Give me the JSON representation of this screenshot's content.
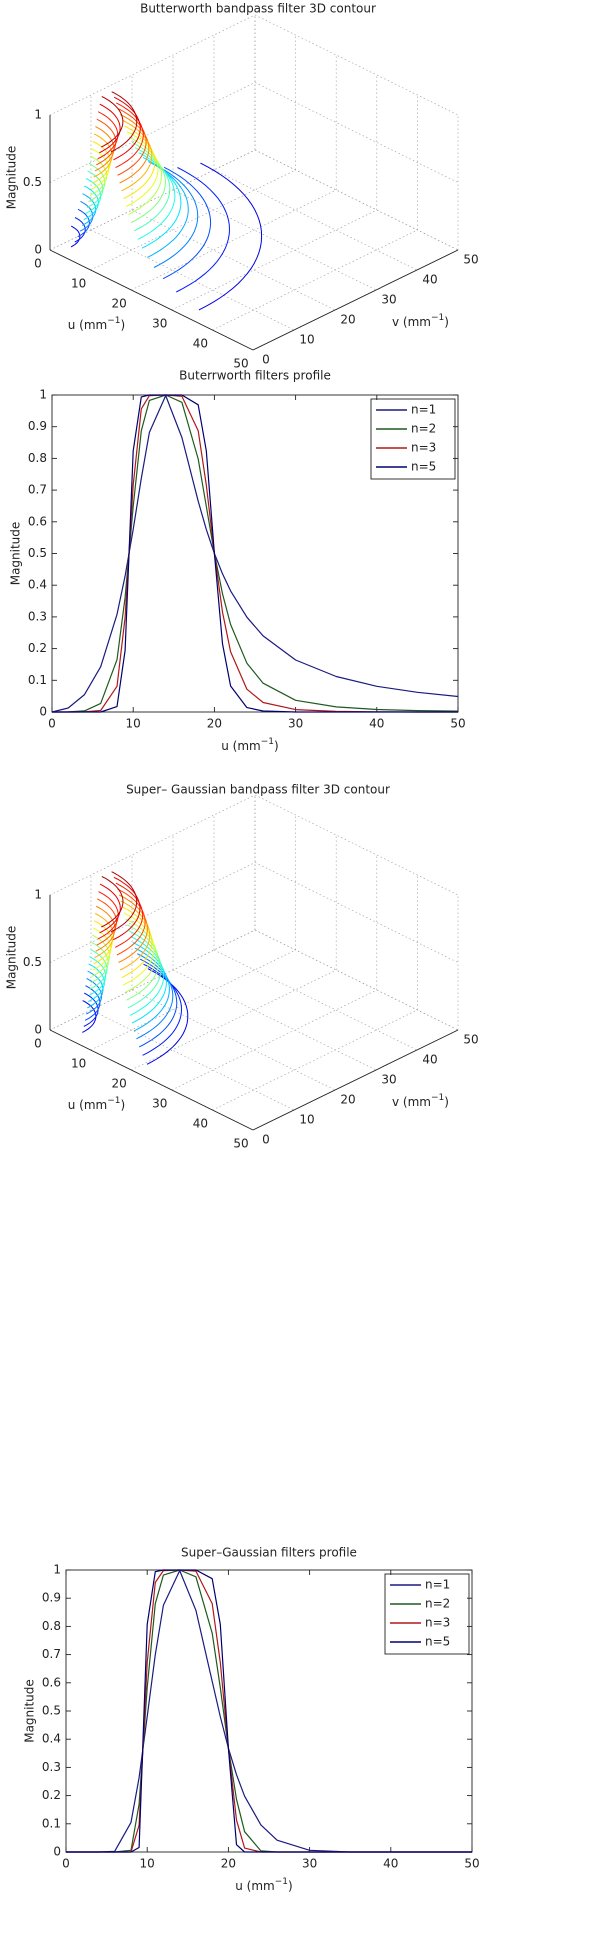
{
  "chart_data": [
    {
      "type": "contour3d",
      "title": "Butterworth  bandpass filter 3D contour",
      "xlabel": [
        "u (mm",
        "−1",
        ")"
      ],
      "ylabel": [
        "v (mm",
        "−1",
        ")"
      ],
      "zlabel": "Magnitude",
      "xlim": [
        0,
        50
      ],
      "ylim": [
        0,
        50
      ],
      "zlim": [
        0,
        1
      ],
      "xticks": [
        0,
        10,
        20,
        30,
        40,
        50
      ],
      "yticks": [
        0,
        10,
        20,
        30,
        40,
        50
      ],
      "zticks": [
        0,
        0.5,
        1
      ]
    },
    {
      "type": "line",
      "title": "Buterrworth filters profile",
      "xlabel": [
        "u  (mm",
        "−1",
        ")"
      ],
      "ylabel": "Magnitude",
      "x": [
        0,
        2,
        4,
        6,
        8,
        9,
        10,
        11,
        12,
        14,
        16,
        18,
        19,
        20,
        21,
        22,
        24,
        26,
        30,
        35,
        40,
        45,
        50
      ],
      "series": [
        {
          "name": "n=1",
          "color": "#1a1a80",
          "values": [
            0,
            0.0126,
            0.055,
            0.143,
            0.308,
            0.429,
            0.576,
            0.737,
            0.882,
            0.998,
            0.866,
            0.665,
            0.576,
            0.5,
            0.436,
            0.382,
            0.299,
            0.24,
            0.164,
            0.112,
            0.081,
            0.062,
            0.049
          ]
        },
        {
          "name": "n=2",
          "color": "#1e5a1e",
          "values": [
            0,
            0.0002,
            0.0034,
            0.027,
            0.165,
            0.361,
            0.649,
            0.887,
            0.983,
            1,
            0.977,
            0.798,
            0.649,
            0.5,
            0.373,
            0.276,
            0.154,
            0.091,
            0.037,
            0.016,
            0.008,
            0.0044,
            0.0027
          ]
        },
        {
          "name": "n=3",
          "color": "#b01818",
          "values": [
            0,
            0,
            0.0002,
            0.0047,
            0.081,
            0.298,
            0.716,
            0.956,
            0.998,
            1,
            0.996,
            0.887,
            0.716,
            0.5,
            0.315,
            0.19,
            0.072,
            0.03,
            0.0076,
            0.002,
            0.0007,
            0,
            0
          ]
        },
        {
          "name": "n=5",
          "color": "#000070",
          "values": [
            0,
            0,
            0,
            0.0001,
            0.017,
            0.194,
            0.824,
            0.994,
            1,
            1,
            1,
            0.969,
            0.824,
            0.5,
            0.215,
            0.082,
            0.014,
            0.003,
            0,
            0,
            0,
            0,
            0
          ]
        }
      ],
      "xlim": [
        0,
        50
      ],
      "ylim": [
        0,
        1
      ],
      "xticks": [
        0,
        10,
        20,
        30,
        40,
        50
      ],
      "yticks": [
        0,
        0.1,
        0.2,
        0.3,
        0.4,
        0.5,
        0.6,
        0.7,
        0.8,
        0.9,
        1
      ],
      "legend": "upper right"
    },
    {
      "type": "contour3d",
      "title": "Super– Gaussian bandpass filter 3D contour",
      "xlabel": [
        "u (mm",
        "−1",
        ")"
      ],
      "ylabel": [
        "v (mm",
        "−1",
        ")"
      ],
      "zlabel": "Magnitude",
      "xlim": [
        0,
        50
      ],
      "ylim": [
        0,
        50
      ],
      "zlim": [
        0,
        1
      ],
      "xticks": [
        0,
        10,
        20,
        30,
        40,
        50
      ],
      "yticks": [
        0,
        10,
        20,
        30,
        40,
        50
      ],
      "zticks": [
        0,
        0.5,
        1
      ]
    },
    {
      "type": "line",
      "title": "Super–Gaussian filters profile",
      "xlabel": [
        "u (mm",
        "−1",
        ")"
      ],
      "ylabel": "Magnitude",
      "x": [
        0,
        2,
        4,
        6,
        8,
        9,
        10,
        11,
        12,
        14,
        16,
        18,
        19,
        20,
        21,
        22,
        24,
        26,
        30,
        35,
        40,
        45,
        50
      ],
      "series": [
        {
          "name": "n=1",
          "color": "#1a1a80",
          "values": [
            0,
            0,
            0,
            0.0025,
            0.105,
            0.264,
            0.48,
            0.7,
            0.875,
            0.998,
            0.857,
            0.605,
            0.48,
            0.368,
            0.274,
            0.198,
            0.096,
            0.042,
            0.006,
            0,
            0,
            0,
            0
          ]
        },
        {
          "name": "n=2",
          "color": "#1e5a1e",
          "values": [
            0,
            0,
            0,
            0,
            0.006,
            0.17,
            0.583,
            0.881,
            0.982,
            1,
            0.976,
            0.776,
            0.583,
            0.368,
            0.187,
            0.072,
            0.004,
            0,
            0,
            0,
            0,
            0,
            0
          ]
        },
        {
          "name": "n=3",
          "color": "#b01818",
          "values": [
            0,
            0,
            0,
            0,
            0,
            0.095,
            0.672,
            0.956,
            0.998,
            1,
            0.996,
            0.881,
            0.672,
            0.368,
            0.113,
            0.014,
            0,
            0,
            0,
            0,
            0,
            0,
            0
          ]
        },
        {
          "name": "n=5",
          "color": "#000070",
          "values": [
            0,
            0,
            0,
            0,
            0,
            0.016,
            0.807,
            0.994,
            1,
            1,
            1,
            0.969,
            0.807,
            0.368,
            0.026,
            0,
            0,
            0,
            0,
            0,
            0,
            0,
            0
          ]
        }
      ],
      "xlim": [
        0,
        50
      ],
      "ylim": [
        0,
        1
      ],
      "xticks": [
        0,
        10,
        20,
        30,
        40,
        50
      ],
      "yticks": [
        0,
        0.1,
        0.2,
        0.3,
        0.4,
        0.5,
        0.6,
        0.7,
        0.8,
        0.9,
        1
      ],
      "legend": "upper right"
    }
  ]
}
